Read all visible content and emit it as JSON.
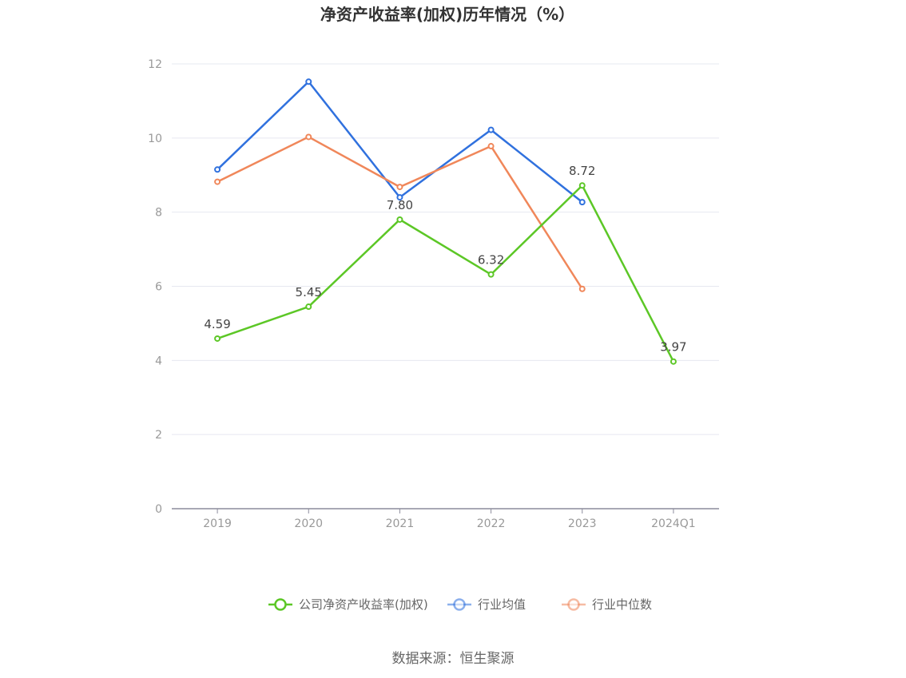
{
  "chart_data": {
    "type": "line",
    "title": "净资产收益率(加权)历年情况（%）",
    "categories": [
      "2019",
      "2020",
      "2021",
      "2022",
      "2023",
      "2024Q1"
    ],
    "ylim": [
      0,
      12
    ],
    "yticks": [
      0,
      2,
      4,
      6,
      8,
      10,
      12
    ],
    "grid": true,
    "legend_position": "bottom-center",
    "series": [
      {
        "name": "公司净资产收益率(加权)",
        "color": "#5cc726",
        "values": [
          4.59,
          5.45,
          7.8,
          6.32,
          8.72,
          3.97
        ],
        "labels": [
          "4.59",
          "5.45",
          "7.80",
          "6.32",
          "8.72",
          "3.97"
        ]
      },
      {
        "name": "行业均值",
        "color": "#3071de",
        "values": [
          9.15,
          11.52,
          8.4,
          10.22,
          8.27,
          null
        ]
      },
      {
        "name": "行业中位数",
        "color": "#f0875a",
        "values": [
          8.82,
          10.03,
          8.68,
          9.78,
          5.93,
          null
        ]
      }
    ]
  },
  "source": "数据来源：恒生聚源"
}
